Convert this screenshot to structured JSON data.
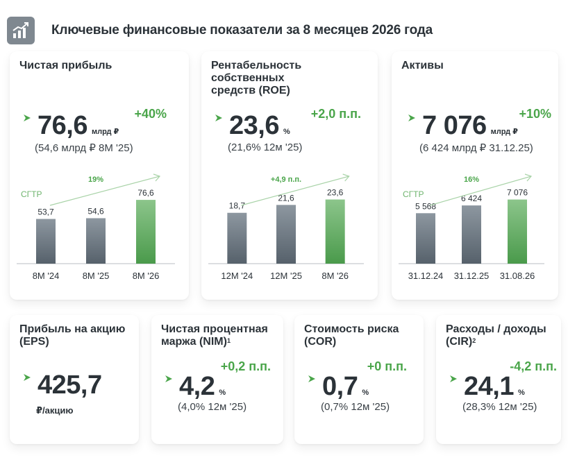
{
  "header": {
    "title": "Ключевые финансовые показатели за 8 месяцев 2026 года",
    "icon": "growth-chart-icon"
  },
  "colors": {
    "accent_green": "#4aa54a",
    "bar_gray": "#6f7b85",
    "bar_green": "#5ea25e",
    "text": "#2b3238"
  },
  "top_cards": [
    {
      "title": "Чистая прибыль",
      "value": "76,6",
      "unit": "млрд ₽",
      "delta": "+40%",
      "prev": "(54,6 млрд ₽  8М '25)",
      "trend_label": "19%",
      "cagr_label": "CГТР"
    },
    {
      "title": "Рентабельность собственных средств (ROE)",
      "value": "23,6",
      "unit": "%",
      "delta": "+2,0 п.п.",
      "prev": "(21,6%  12м '25)",
      "trend_label": "+4,9 п.п."
    },
    {
      "title": "Активы",
      "value": "7 076",
      "unit": "млрд ₽",
      "delta": "+10%",
      "prev": "(6 424 млрд ₽  31.12.25)",
      "trend_label": "16%",
      "cagr_label": "CГТР"
    }
  ],
  "bottom_cards": [
    {
      "title": "Прибыль на акцию (EPS)",
      "value": "425,7",
      "unit": "₽/акцию",
      "delta": "",
      "prev": ""
    },
    {
      "title": "Чистая процентная маржа (NIM)",
      "sup": "1",
      "value": "4,2",
      "unit": "%",
      "delta": "+0,2 п.п.",
      "prev": "(4,0%  12м '25)"
    },
    {
      "title": "Стоимость риска (COR)",
      "value": "0,7",
      "unit": "%",
      "delta": "+0 п.п.",
      "prev": "(0,7%  12м '25)"
    },
    {
      "title": "Расходы / доходы (CIR)",
      "sup": "2",
      "value": "24,1",
      "unit": "%",
      "delta": "-4,2 п.п.",
      "prev": "(28,3%  12м '25)"
    }
  ],
  "chart_data": [
    {
      "type": "bar",
      "categories": [
        "8М '24",
        "8М '25",
        "8М '26"
      ],
      "values": [
        53.7,
        54.6,
        76.6
      ],
      "labels": [
        "53,7",
        "54,6",
        "76,6"
      ],
      "ylim": [
        0,
        80
      ],
      "highlight_last": true
    },
    {
      "type": "bar",
      "categories": [
        "12М '24",
        "12М '25",
        "8М '26"
      ],
      "values": [
        18.7,
        21.6,
        23.6
      ],
      "labels": [
        "18,7",
        "21,6",
        "23,6"
      ],
      "ylim": [
        0,
        24.5
      ],
      "highlight_last": true
    },
    {
      "type": "bar",
      "categories": [
        "31.12.24",
        "31.12.25",
        "31.08.26"
      ],
      "values": [
        5568,
        6424,
        7076
      ],
      "labels": [
        "5 568",
        "6 424",
        "7 076"
      ],
      "ylim": [
        0,
        7350
      ],
      "highlight_last": true
    }
  ]
}
